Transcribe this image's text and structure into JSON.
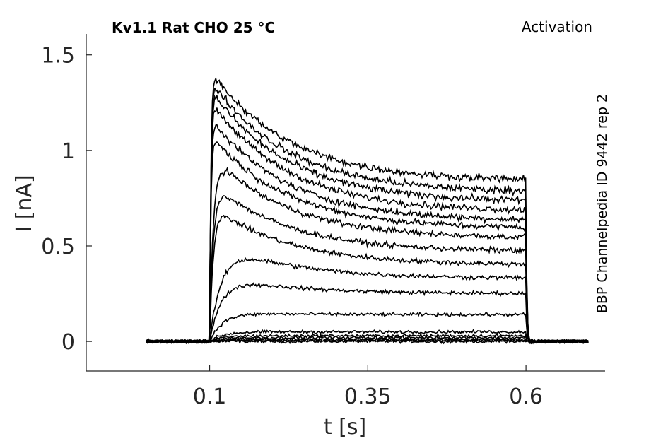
{
  "chart_data": {
    "type": "line",
    "title": "Kv1.1  Rat  CHO  25 °C",
    "annotation": "Activation",
    "side_label": "BBP Channelpedia ID 9442 rep 2",
    "xlabel": "t [s]",
    "ylabel": "I [nA]",
    "xlim": [
      -0.095,
      0.725
    ],
    "ylim": [
      -0.155,
      1.61
    ],
    "xticks": [
      0.1,
      0.35,
      0.6
    ],
    "xtick_labels": [
      "0.1",
      "0.35",
      "0.6"
    ],
    "yticks": [
      0,
      0.5,
      1,
      1.5
    ],
    "ytick_labels": [
      "0",
      "0.5",
      "1",
      "1.5"
    ],
    "grid": false,
    "line_color": "#000000",
    "stimulus": {
      "onset": 0.1,
      "offset": 0.6,
      "t_start": 0.0,
      "t_end": 0.7
    },
    "series": [
      {
        "peak": 0.0,
        "end": 0.0
      },
      {
        "peak": 0.005,
        "end": 0.005
      },
      {
        "peak": 0.01,
        "end": 0.01
      },
      {
        "peak": 0.02,
        "end": 0.02
      },
      {
        "peak": 0.03,
        "end": 0.03
      },
      {
        "peak": 0.05,
        "end": 0.05
      },
      {
        "peak": 0.15,
        "end": 0.14
      },
      {
        "peak": 0.35,
        "end": 0.25
      },
      {
        "peak": 0.53,
        "end": 0.33
      },
      {
        "peak": 0.72,
        "end": 0.4
      },
      {
        "peak": 0.84,
        "end": 0.47
      },
      {
        "peak": 0.99,
        "end": 0.54
      },
      {
        "peak": 1.09,
        "end": 0.59
      },
      {
        "peak": 1.18,
        "end": 0.63
      },
      {
        "peak": 1.27,
        "end": 0.68
      },
      {
        "peak": 1.33,
        "end": 0.73
      },
      {
        "peak": 1.38,
        "end": 0.78
      },
      {
        "peak": 1.43,
        "end": 0.84
      }
    ]
  }
}
